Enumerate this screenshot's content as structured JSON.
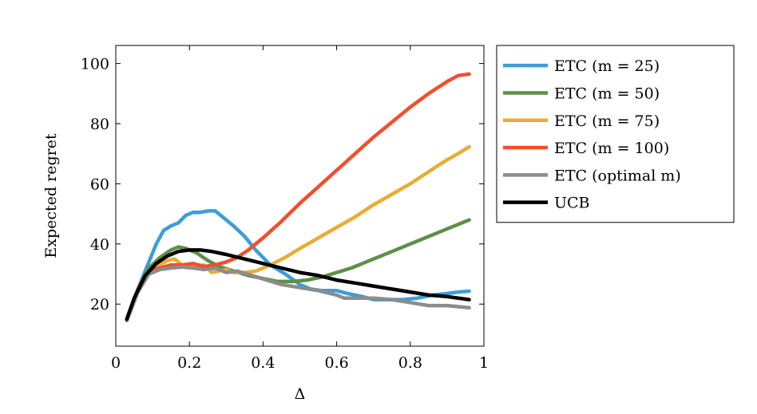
{
  "chart_data": {
    "type": "line",
    "title": "",
    "xlabel": "Δ",
    "ylabel": "Expected regret",
    "xlim": [
      0,
      1
    ],
    "ylim": [
      6,
      106
    ],
    "xticks": [
      0,
      0.2,
      0.4,
      0.6,
      0.8,
      1
    ],
    "xtick_labels": [
      "0",
      "0.2",
      "0.4",
      "0.6",
      "0.8",
      "1"
    ],
    "yticks": [
      20,
      40,
      60,
      80,
      100
    ],
    "ytick_labels": [
      "20",
      "40",
      "60",
      "80",
      "100"
    ],
    "grid": false,
    "legend_position": "outside-right",
    "series": [
      {
        "name": "ETC (m = 25)",
        "color": "#3a9fd8",
        "x": [
          0.03,
          0.06,
          0.09,
          0.11,
          0.13,
          0.15,
          0.17,
          0.19,
          0.21,
          0.23,
          0.25,
          0.27,
          0.29,
          0.32,
          0.35,
          0.38,
          0.42,
          0.46,
          0.5,
          0.53,
          0.56,
          0.6,
          0.63,
          0.67,
          0.7,
          0.74,
          0.78,
          0.82,
          0.86,
          0.9,
          0.93,
          0.96
        ],
        "y": [
          15,
          25,
          34,
          40,
          44.5,
          46,
          47,
          49.5,
          50.5,
          50.5,
          51,
          51,
          49,
          46,
          42.5,
          38,
          33,
          30,
          26.5,
          25,
          24.5,
          24.5,
          23.5,
          22.5,
          21.5,
          21.5,
          21.5,
          22,
          23,
          23.5,
          24,
          24.3
        ]
      },
      {
        "name": "ETC (m = 50)",
        "color": "#5e8f46",
        "x": [
          0.03,
          0.06,
          0.09,
          0.12,
          0.15,
          0.17,
          0.19,
          0.22,
          0.25,
          0.28,
          0.32,
          0.36,
          0.4,
          0.44,
          0.48,
          0.52,
          0.56,
          0.6,
          0.64,
          0.68,
          0.72,
          0.76,
          0.8,
          0.84,
          0.88,
          0.92,
          0.96
        ],
        "y": [
          15,
          25,
          32,
          35.5,
          38,
          39,
          38.5,
          37,
          34.5,
          32.5,
          31,
          29.5,
          28.5,
          27.5,
          27.5,
          28,
          29,
          30.5,
          32,
          34,
          36,
          38,
          40,
          42,
          44,
          46,
          48
        ]
      },
      {
        "name": "ETC (m = 75)",
        "color": "#e8ad32",
        "x": [
          0.03,
          0.06,
          0.09,
          0.12,
          0.14,
          0.16,
          0.18,
          0.2,
          0.22,
          0.24,
          0.26,
          0.28,
          0.3,
          0.32,
          0.35,
          0.38,
          0.42,
          0.46,
          0.5,
          0.55,
          0.6,
          0.65,
          0.7,
          0.75,
          0.8,
          0.85,
          0.9,
          0.93,
          0.96
        ],
        "y": [
          15,
          25,
          31,
          33,
          34.5,
          35,
          33,
          32.5,
          32.5,
          33,
          30.5,
          31,
          31.5,
          30.5,
          30.5,
          31,
          33,
          35.5,
          38.5,
          42,
          45.5,
          49,
          53,
          56.5,
          60,
          64,
          68,
          70,
          72.3
        ]
      },
      {
        "name": "ETC (m = 100)",
        "color": "#f24e2e",
        "x": [
          0.03,
          0.06,
          0.09,
          0.12,
          0.15,
          0.18,
          0.21,
          0.24,
          0.27,
          0.3,
          0.33,
          0.36,
          0.4,
          0.45,
          0.5,
          0.55,
          0.6,
          0.65,
          0.7,
          0.75,
          0.8,
          0.85,
          0.9,
          0.93,
          0.96
        ],
        "y": [
          15,
          25,
          31,
          32,
          33,
          33,
          33.5,
          32.5,
          33,
          34,
          35.5,
          38,
          42,
          47.5,
          53.5,
          59,
          64.5,
          70,
          75.5,
          80.5,
          85.5,
          90,
          94,
          96,
          96.5
        ]
      },
      {
        "name": "ETC (optimal m)",
        "color": "#8c8c8c",
        "x": [
          0.03,
          0.06,
          0.09,
          0.12,
          0.15,
          0.18,
          0.21,
          0.24,
          0.27,
          0.3,
          0.33,
          0.37,
          0.41,
          0.45,
          0.5,
          0.55,
          0.6,
          0.62,
          0.65,
          0.7,
          0.75,
          0.8,
          0.85,
          0.9,
          0.96
        ],
        "y": [
          14.5,
          24,
          30,
          31.5,
          32,
          32.3,
          32,
          31.5,
          32,
          30.5,
          31,
          29.5,
          28,
          26.5,
          25.5,
          24.5,
          23,
          22,
          22,
          22,
          21.5,
          20.5,
          19.5,
          19.5,
          18.8
        ]
      },
      {
        "name": "UCB",
        "color": "#000000",
        "x": [
          0.03,
          0.05,
          0.08,
          0.11,
          0.14,
          0.17,
          0.2,
          0.23,
          0.26,
          0.3,
          0.35,
          0.4,
          0.45,
          0.5,
          0.55,
          0.6,
          0.65,
          0.7,
          0.75,
          0.8,
          0.85,
          0.9,
          0.96
        ],
        "y": [
          15,
          22,
          29.5,
          33.5,
          36,
          37.5,
          38,
          38,
          37.5,
          36.5,
          35,
          33.5,
          32,
          30.5,
          29.5,
          28,
          27,
          26,
          25,
          24,
          23,
          22.5,
          21.5
        ]
      }
    ]
  }
}
